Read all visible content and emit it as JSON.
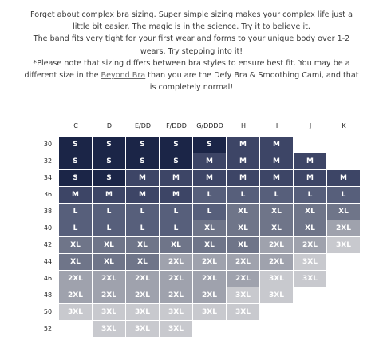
{
  "intro": {
    "line1": "Forget about complex bra sizing. Super simple sizing makes your complex life just a little bit easier. The magic is in the science. Try it to believe it.",
    "line2": "The band fits very tight for your first wear and forms to your unique body over 1-2 wears. Try stepping into it!",
    "line3_a": "*Please note that sizing differs between bra styles to ensure best fit. You may be a different size in the ",
    "line3_link": "Beyond Bra",
    "line3_b": " than you are the Defy Bra & Smoothing Cami, and that is completely normal!"
  },
  "chart_data": {
    "type": "table",
    "columns": [
      "C",
      "D",
      "E/DD",
      "F/DDD",
      "G/DDDD",
      "H",
      "I",
      "J",
      "K"
    ],
    "rows": [
      {
        "band": "30",
        "start": 0,
        "sizes": [
          "S",
          "S",
          "S",
          "S",
          "S",
          "M",
          "M"
        ]
      },
      {
        "band": "32",
        "start": 0,
        "sizes": [
          "S",
          "S",
          "S",
          "S",
          "M",
          "M",
          "M",
          "M"
        ]
      },
      {
        "band": "34",
        "start": 0,
        "sizes": [
          "S",
          "S",
          "M",
          "M",
          "M",
          "M",
          "M",
          "M",
          "M"
        ]
      },
      {
        "band": "36",
        "start": 0,
        "sizes": [
          "M",
          "M",
          "M",
          "M",
          "L",
          "L",
          "L",
          "L",
          "L"
        ]
      },
      {
        "band": "38",
        "start": 0,
        "sizes": [
          "L",
          "L",
          "L",
          "L",
          "L",
          "XL",
          "XL",
          "XL",
          "XL"
        ]
      },
      {
        "band": "40",
        "start": 0,
        "sizes": [
          "L",
          "L",
          "L",
          "L",
          "XL",
          "XL",
          "XL",
          "XL",
          "2XL"
        ]
      },
      {
        "band": "42",
        "start": 0,
        "sizes": [
          "XL",
          "XL",
          "XL",
          "XL",
          "XL",
          "XL",
          "2XL",
          "2XL",
          "3XL"
        ]
      },
      {
        "band": "44",
        "start": 0,
        "sizes": [
          "XL",
          "XL",
          "XL",
          "2XL",
          "2XL",
          "2XL",
          "2XL",
          "3XL"
        ]
      },
      {
        "band": "46",
        "start": 0,
        "sizes": [
          "2XL",
          "2XL",
          "2XL",
          "2XL",
          "2XL",
          "2XL",
          "3XL",
          "3XL"
        ]
      },
      {
        "band": "48",
        "start": 0,
        "sizes": [
          "2XL",
          "2XL",
          "2XL",
          "2XL",
          "2XL",
          "3XL",
          "3XL"
        ]
      },
      {
        "band": "50",
        "start": 0,
        "sizes": [
          "3XL",
          "3XL",
          "3XL",
          "3XL",
          "3XL",
          "3XL"
        ]
      },
      {
        "band": "52",
        "start": 1,
        "sizes": [
          "3XL",
          "3XL",
          "3XL"
        ]
      }
    ],
    "colors": {
      "S": "#1b2547",
      "M": "#3d4566",
      "L": "#575f7b",
      "XL": "#6f7589",
      "2XL": "#9fa2ad",
      "3XL": "#c8c9ce"
    }
  }
}
